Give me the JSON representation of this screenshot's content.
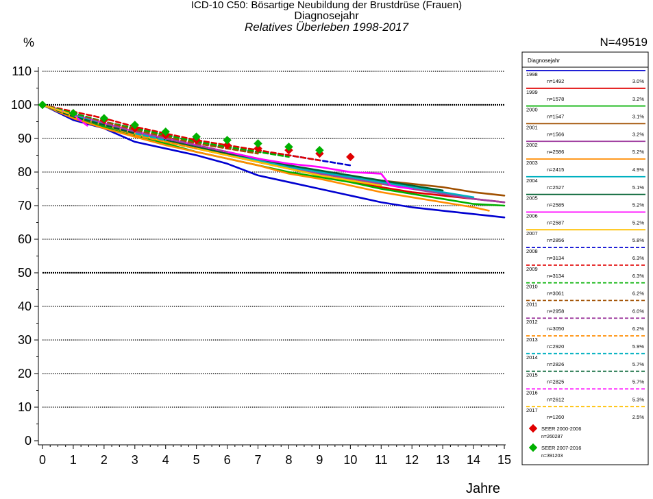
{
  "chart_data": {
    "type": "line",
    "title": "ICD-10 C50: Bösartige Neubildung der Brustdrüse (Frauen)",
    "subtitle": "Diagnosejahr",
    "subtitle2": "Relatives Überleben 1998-2017",
    "ylabel": "%",
    "xlabel": "Jahre",
    "total_label": "N=49519",
    "xlim": [
      0,
      15
    ],
    "ylim": [
      0,
      110
    ],
    "x_ticks": [
      0,
      1,
      2,
      3,
      4,
      5,
      6,
      7,
      8,
      9,
      10,
      11,
      12,
      13,
      14,
      15
    ],
    "y_ticks": [
      0,
      10,
      20,
      30,
      40,
      50,
      60,
      70,
      80,
      90,
      100,
      110
    ],
    "grid": "horizontal-dotted",
    "legend": {
      "title": "Diagnosejahr",
      "placement": "right",
      "entries": [
        {
          "year": "1998",
          "n": "n=1492",
          "pct": "3.0%",
          "color": "#0000d0",
          "dash": false
        },
        {
          "year": "1999",
          "n": "n=1578",
          "pct": "3.2%",
          "color": "#e00000",
          "dash": false
        },
        {
          "year": "2000",
          "n": "n=1547",
          "pct": "3.1%",
          "color": "#00b000",
          "dash": false
        },
        {
          "year": "2001",
          "n": "n=1566",
          "pct": "3.2%",
          "color": "#a05000",
          "dash": false
        },
        {
          "year": "2002",
          "n": "n=2586",
          "pct": "5.2%",
          "color": "#a040a0",
          "dash": false
        },
        {
          "year": "2003",
          "n": "n=2415",
          "pct": "4.9%",
          "color": "#ff8c00",
          "dash": false
        },
        {
          "year": "2004",
          "n": "n=2527",
          "pct": "5.1%",
          "color": "#00b0c0",
          "dash": false
        },
        {
          "year": "2005",
          "n": "n=2585",
          "pct": "5.2%",
          "color": "#006030",
          "dash": false
        },
        {
          "year": "2006",
          "n": "n=2587",
          "pct": "5.2%",
          "color": "#ff00ff",
          "dash": false
        },
        {
          "year": "2007",
          "n": "n=2856",
          "pct": "5.8%",
          "color": "#ffc000",
          "dash": false
        },
        {
          "year": "2008",
          "n": "n=3134",
          "pct": "6.3%",
          "color": "#0000d0",
          "dash": true
        },
        {
          "year": "2009",
          "n": "n=3134",
          "pct": "6.3%",
          "color": "#e00000",
          "dash": true
        },
        {
          "year": "2010",
          "n": "n=3061",
          "pct": "6.2%",
          "color": "#00b000",
          "dash": true
        },
        {
          "year": "2011",
          "n": "n=2958",
          "pct": "6.0%",
          "color": "#a05000",
          "dash": true
        },
        {
          "year": "2012",
          "n": "n=3050",
          "pct": "6.2%",
          "color": "#a040a0",
          "dash": true
        },
        {
          "year": "2013",
          "n": "n=2920",
          "pct": "5.9%",
          "color": "#ff8c00",
          "dash": true
        },
        {
          "year": "2014",
          "n": "n=2826",
          "pct": "5.7%",
          "color": "#00b0c0",
          "dash": true
        },
        {
          "year": "2015",
          "n": "n=2825",
          "pct": "5.7%",
          "color": "#006030",
          "dash": true
        },
        {
          "year": "2016",
          "n": "n=2612",
          "pct": "5.3%",
          "color": "#ff00ff",
          "dash": true
        },
        {
          "year": "2017",
          "n": "n=1260",
          "pct": "2.5%",
          "color": "#ffc000",
          "dash": true
        }
      ],
      "markers": [
        {
          "label": "SEER 2000-2006",
          "n": "n=260287",
          "color": "#e00000"
        },
        {
          "label": "SEER 2007-2016",
          "n": "n=391203",
          "color": "#00b000"
        }
      ]
    },
    "series": [
      {
        "name": "1998",
        "x": [
          0,
          1,
          2,
          3,
          4,
          5,
          6,
          7,
          8,
          9,
          10,
          11,
          12,
          13,
          14,
          15
        ],
        "y": [
          100,
          95.5,
          93,
          89,
          87,
          85,
          82.5,
          79,
          77,
          75,
          73,
          71,
          69.5,
          68.5,
          67.5,
          66.5
        ]
      },
      {
        "name": "1999",
        "x": [
          0,
          1,
          2,
          3,
          4,
          5,
          6,
          7,
          8,
          9,
          10,
          11,
          12,
          13,
          14,
          15
        ],
        "y": [
          100,
          96.5,
          94,
          91,
          89,
          87,
          85,
          83,
          81,
          79,
          77,
          75.5,
          74,
          73,
          72,
          71
        ]
      },
      {
        "name": "2000",
        "x": [
          0,
          1,
          2,
          3,
          4,
          5,
          6,
          7,
          8,
          9,
          10,
          11,
          12,
          13,
          14,
          15
        ],
        "y": [
          100,
          96.5,
          93.5,
          91,
          88.5,
          86,
          84,
          82,
          80,
          78.5,
          77,
          75,
          73.5,
          72,
          70.5,
          70
        ]
      },
      {
        "name": "2001",
        "x": [
          0,
          1,
          2,
          3,
          4,
          5,
          6,
          7,
          8,
          9,
          10,
          11,
          12,
          13,
          14,
          15
        ],
        "y": [
          100,
          97,
          94,
          92,
          90,
          88,
          86,
          84,
          82,
          80,
          78.5,
          77.5,
          76.5,
          75.5,
          74,
          73
        ]
      },
      {
        "name": "2002",
        "x": [
          0,
          1,
          2,
          3,
          4,
          5,
          6,
          7,
          8,
          9,
          10,
          11,
          12,
          13,
          14,
          15
        ],
        "y": [
          100,
          96.5,
          94,
          91.5,
          89,
          87,
          85,
          83,
          81,
          79.5,
          78,
          76.5,
          75,
          73.5,
          72,
          71
        ]
      },
      {
        "name": "2003",
        "x": [
          0,
          1,
          2,
          3,
          4,
          5,
          6,
          7,
          8,
          9,
          10,
          11,
          12,
          13,
          14,
          14.5
        ],
        "y": [
          100,
          96,
          93,
          90.5,
          88,
          86,
          84,
          82,
          79.5,
          78,
          76,
          74,
          72.5,
          71,
          69.5,
          68.5
        ]
      },
      {
        "name": "2004",
        "x": [
          0,
          1,
          2,
          3,
          4,
          5,
          6,
          7,
          8,
          9,
          10,
          11,
          12,
          13,
          14
        ],
        "y": [
          100,
          97,
          94,
          91.5,
          89,
          87,
          85.5,
          83.5,
          81.5,
          80,
          78.5,
          77,
          75.5,
          74,
          72.5
        ]
      },
      {
        "name": "2005",
        "x": [
          0,
          1,
          2,
          3,
          4,
          5,
          6,
          7,
          8,
          9,
          10,
          11,
          12,
          13
        ],
        "y": [
          100,
          97,
          94.5,
          92,
          89.5,
          87.5,
          85.5,
          84,
          82,
          80.5,
          79,
          77.5,
          76,
          74.5
        ]
      },
      {
        "name": "2006",
        "x": [
          0,
          1,
          2,
          3,
          4,
          5,
          6,
          7,
          8,
          9,
          10,
          11,
          11.3,
          11.6,
          12
        ],
        "y": [
          100,
          97,
          94.5,
          92,
          90,
          88,
          86,
          84,
          82.5,
          81.5,
          80,
          79.5,
          76,
          75.5,
          75
        ]
      },
      {
        "name": "2007",
        "x": [
          0,
          1,
          2,
          3,
          4,
          5,
          6,
          7,
          8,
          9,
          10,
          11
        ],
        "y": [
          100,
          96.5,
          94,
          91.5,
          89,
          87,
          85,
          83,
          81,
          79,
          77.5,
          76
        ]
      },
      {
        "name": "2008",
        "x": [
          0,
          1,
          2,
          3,
          4,
          5,
          6,
          7,
          8,
          9,
          10
        ],
        "y": [
          100,
          97.5,
          95,
          93,
          91,
          89,
          87,
          86,
          85,
          83.5,
          82
        ]
      },
      {
        "name": "2009",
        "x": [
          0,
          1,
          2,
          3,
          4,
          5,
          6,
          7,
          8,
          9
        ],
        "y": [
          100,
          98,
          96,
          93.5,
          91.5,
          89.5,
          88,
          86.5,
          85,
          83.5
        ]
      },
      {
        "name": "2010",
        "x": [
          0,
          1,
          2,
          3,
          4,
          5,
          6,
          7,
          8
        ],
        "y": [
          100,
          97.5,
          95,
          93,
          91,
          89,
          87.5,
          86,
          84.5
        ]
      },
      {
        "name": "2011",
        "x": [
          0,
          1,
          2,
          3,
          4,
          5,
          6,
          7
        ],
        "y": [
          100,
          97,
          95,
          92.5,
          90.5,
          88.5,
          87,
          85.5
        ]
      },
      {
        "name": "2012",
        "x": [
          0,
          1,
          2,
          3,
          4,
          5,
          6
        ],
        "y": [
          100,
          97,
          94.5,
          92,
          90,
          88,
          86
        ]
      },
      {
        "name": "2013",
        "x": [
          0,
          1,
          2,
          3,
          4,
          5
        ],
        "y": [
          100,
          96.5,
          94,
          91,
          89,
          87
        ]
      },
      {
        "name": "2014",
        "x": [
          0,
          1,
          2,
          3,
          4
        ],
        "y": [
          100,
          97,
          94,
          91.5,
          89.5
        ]
      },
      {
        "name": "2015",
        "x": [
          0,
          1,
          2,
          3
        ],
        "y": [
          100,
          96.5,
          94,
          91.5
        ]
      },
      {
        "name": "2016",
        "x": [
          0,
          1,
          1.5
        ],
        "y": [
          100,
          97,
          93.5
        ]
      },
      {
        "name": "2017",
        "x": [
          0,
          1
        ],
        "y": [
          100,
          97
        ]
      }
    ],
    "seer_2000_2006": {
      "x": [
        0,
        1,
        2,
        3,
        4,
        5,
        6,
        7,
        8,
        9,
        10
      ],
      "y": [
        100,
        97.5,
        95.5,
        93,
        91,
        89.5,
        88,
        87,
        86.5,
        85.5,
        84.5
      ]
    },
    "seer_2007_2016": {
      "x": [
        0,
        1,
        2,
        3,
        4,
        5,
        6,
        7,
        8,
        9
      ],
      "y": [
        100,
        97.5,
        96,
        94,
        92,
        90.5,
        89.5,
        88.5,
        87.5,
        86.5
      ]
    }
  }
}
